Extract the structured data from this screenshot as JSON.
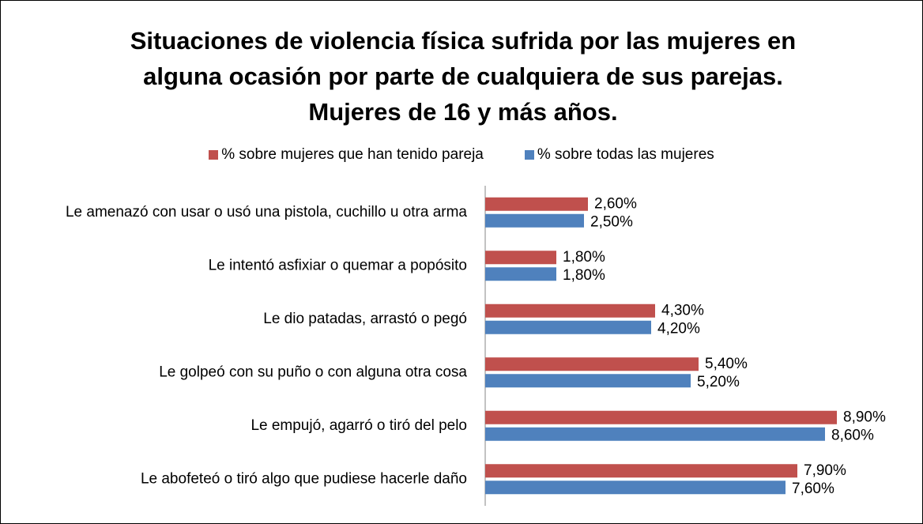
{
  "chart_data": {
    "type": "bar",
    "orientation": "horizontal",
    "title": "Situaciones de violencia física sufrida por las mujeres en alguna ocasión por parte de cualquiera de sus parejas. Mujeres de 16 y más años.",
    "categories": [
      "Le amenazó con usar o usó una pistola, cuchillo u otra arma",
      "Le intentó asfixiar o quemar a popósito",
      "Le dio patadas, arrastó o pegó",
      "Le golpeó con su puño o con alguna otra cosa",
      "Le empujó, agarró o tiró del pelo",
      "Le abofeteó o tiró algo que pudiese hacerle daño"
    ],
    "series": [
      {
        "name": "% sobre mujeres que han tenido pareja",
        "color": "#c0504d",
        "values": [
          2.6,
          1.8,
          4.3,
          5.4,
          8.9,
          7.9
        ],
        "value_labels": [
          "2,60%",
          "1,80%",
          "4,30%",
          "5,40%",
          "8,90%",
          "7,90%"
        ]
      },
      {
        "name": "% sobre todas las mujeres",
        "color": "#4f81bd",
        "values": [
          2.5,
          1.8,
          4.2,
          5.2,
          8.6,
          7.6
        ],
        "value_labels": [
          "2,50%",
          "1,80%",
          "4,20%",
          "5,20%",
          "8,60%",
          "7,60%"
        ]
      }
    ],
    "xlim": [
      0,
      9
    ],
    "legend": "top",
    "grid": false
  }
}
